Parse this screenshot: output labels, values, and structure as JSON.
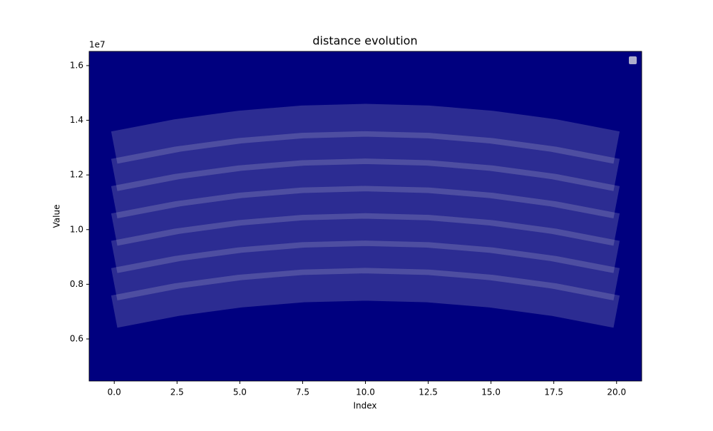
{
  "chart_data": {
    "type": "line",
    "title": "distance evolution",
    "x_label": "Index",
    "y_label": "Value",
    "y_offset_label": "1e7",
    "background": "#00007f",
    "x": [
      0,
      2.5,
      5,
      7.5,
      10,
      12.5,
      15,
      17.5,
      20
    ],
    "series": [
      {
        "color": "#c8c8d8",
        "values": [
          0.7,
          0.744,
          0.775,
          0.794,
          0.8,
          0.794,
          0.775,
          0.744,
          0.7
        ]
      },
      {
        "color": "#c8c8d8",
        "values": [
          0.8,
          0.844,
          0.875,
          0.894,
          0.9,
          0.894,
          0.875,
          0.844,
          0.8
        ]
      },
      {
        "color": "#c8c8d8",
        "values": [
          0.9,
          0.944,
          0.975,
          0.994,
          1.0,
          0.994,
          0.975,
          0.944,
          0.9
        ]
      },
      {
        "color": "#c8c8d8",
        "values": [
          1.0,
          1.044,
          1.075,
          1.094,
          1.1,
          1.094,
          1.075,
          1.044,
          1.0
        ]
      },
      {
        "color": "#c8c8d8",
        "values": [
          1.1,
          1.144,
          1.175,
          1.194,
          1.2,
          1.194,
          1.175,
          1.144,
          1.1
        ]
      },
      {
        "color": "#c8c8d8",
        "values": [
          1.2,
          1.244,
          1.275,
          1.294,
          1.3,
          1.294,
          1.275,
          1.244,
          1.2
        ]
      },
      {
        "color": "#c8c8d8",
        "values": [
          1.3,
          1.344,
          1.375,
          1.394,
          1.4,
          1.394,
          1.375,
          1.344,
          1.3
        ]
      }
    ],
    "xlim": [
      -1,
      21
    ],
    "ylim": [
      0.446,
      1.652
    ],
    "xticks": [
      {
        "value": 0,
        "label": "0.0"
      },
      2.5,
      {
        "value": 5,
        "label": "5.0"
      },
      7.5,
      {
        "value": 10,
        "label": "10.0"
      },
      12.5,
      {
        "value": 15,
        "label": "15.0"
      },
      17.5,
      {
        "value": 20,
        "label": "20.0"
      }
    ],
    "yticks": [
      0.6,
      0.8,
      {
        "value": 1,
        "label": "1.0"
      },
      1.2,
      1.4,
      1.6
    ]
  }
}
